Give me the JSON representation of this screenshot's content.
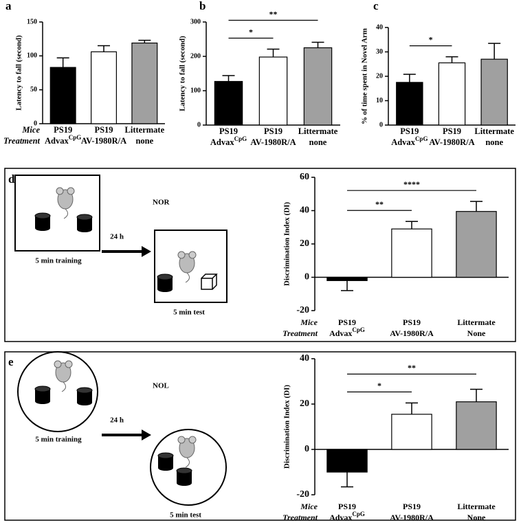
{
  "chart_data": [
    {
      "type": "bar",
      "panel": "a",
      "ylabel": "Latency to fall (second)",
      "row_labels": [
        "Mice",
        "Treatment"
      ],
      "mice": [
        "PS19",
        "PS19",
        "Littermate"
      ],
      "treatment": [
        "Advax",
        "AV-1980R/A",
        "none"
      ],
      "treatment_sup": [
        "CpG",
        null,
        null
      ],
      "values": [
        83,
        106,
        119
      ],
      "errors": [
        14,
        9,
        4
      ],
      "colors": [
        "#000000",
        "#ffffff",
        "#a0a0a0"
      ],
      "ylim": [
        0,
        150
      ],
      "yticks": [
        0,
        50,
        100,
        150
      ],
      "significance": []
    },
    {
      "type": "bar",
      "panel": "b",
      "ylabel": "Latency to fall (second)",
      "mice": [
        "PS19",
        "PS19",
        "Littermate"
      ],
      "treatment": [
        "Advax",
        "AV-1980R/A",
        "none"
      ],
      "treatment_sup": [
        "CpG",
        null,
        null
      ],
      "values": [
        127,
        198,
        225
      ],
      "errors": [
        17,
        23,
        16
      ],
      "colors": [
        "#000000",
        "#ffffff",
        "#a0a0a0"
      ],
      "ylim": [
        0,
        300
      ],
      "yticks": [
        0,
        100,
        200,
        300
      ],
      "significance": [
        {
          "from": 0,
          "to": 1,
          "label": "*"
        },
        {
          "from": 0,
          "to": 2,
          "label": "**"
        }
      ]
    },
    {
      "type": "bar",
      "panel": "c",
      "ylabel": "% of time spent in Novel Arm",
      "mice": [
        "PS19",
        "PS19",
        "Littermate"
      ],
      "treatment": [
        "Advax",
        "AV-1980R/A",
        "none"
      ],
      "treatment_sup": [
        "CpG",
        null,
        null
      ],
      "values": [
        17.5,
        25.5,
        27
      ],
      "errors": [
        3.3,
        2.5,
        6.5
      ],
      "colors": [
        "#000000",
        "#ffffff",
        "#a0a0a0"
      ],
      "ylim": [
        0,
        40
      ],
      "yticks": [
        0,
        10,
        20,
        30,
        40
      ],
      "significance": [
        {
          "from": 0,
          "to": 1,
          "label": "*"
        }
      ]
    },
    {
      "type": "bar",
      "panel": "d",
      "ylabel": "Discrimination Index (DI)",
      "row_labels": [
        "Mice",
        "Treatment"
      ],
      "mice": [
        "PS19",
        "PS19",
        "Littermate"
      ],
      "treatment": [
        "Advax",
        "AV-1980R/A",
        "None"
      ],
      "treatment_sup": [
        "CpG",
        null,
        null
      ],
      "values": [
        -2,
        29,
        39.5
      ],
      "errors": [
        6,
        4.5,
        6
      ],
      "colors": [
        "#000000",
        "#ffffff",
        "#a0a0a0"
      ],
      "ylim": [
        -20,
        60
      ],
      "yticks": [
        -20,
        0,
        20,
        40,
        60
      ],
      "significance": [
        {
          "from": 0,
          "to": 1,
          "label": "**"
        },
        {
          "from": 0,
          "to": 2,
          "label": "****"
        }
      ],
      "diagram": {
        "title": "NOR",
        "before": "5 min training",
        "interval": "24 h",
        "after": "5 min test",
        "shape": "square"
      }
    },
    {
      "type": "bar",
      "panel": "e",
      "ylabel": "Discrimination Index (DI)",
      "row_labels": [
        "Mice",
        "Treatment"
      ],
      "mice": [
        "PS19",
        "PS19",
        "Littermate"
      ],
      "treatment": [
        "Advax",
        "AV-1980R/A",
        "None"
      ],
      "treatment_sup": [
        "CpG",
        null,
        null
      ],
      "values": [
        -10,
        15.5,
        21
      ],
      "errors": [
        6.5,
        5,
        5.5
      ],
      "colors": [
        "#000000",
        "#ffffff",
        "#a0a0a0"
      ],
      "ylim": [
        -20,
        40
      ],
      "yticks": [
        -20,
        0,
        20,
        40
      ],
      "significance": [
        {
          "from": 0,
          "to": 1,
          "label": "*"
        },
        {
          "from": 0,
          "to": 2,
          "label": "**"
        }
      ],
      "diagram": {
        "title": "NOL",
        "before": "5 min training",
        "interval": "24 h",
        "after": "5 min test",
        "shape": "circle"
      }
    }
  ]
}
